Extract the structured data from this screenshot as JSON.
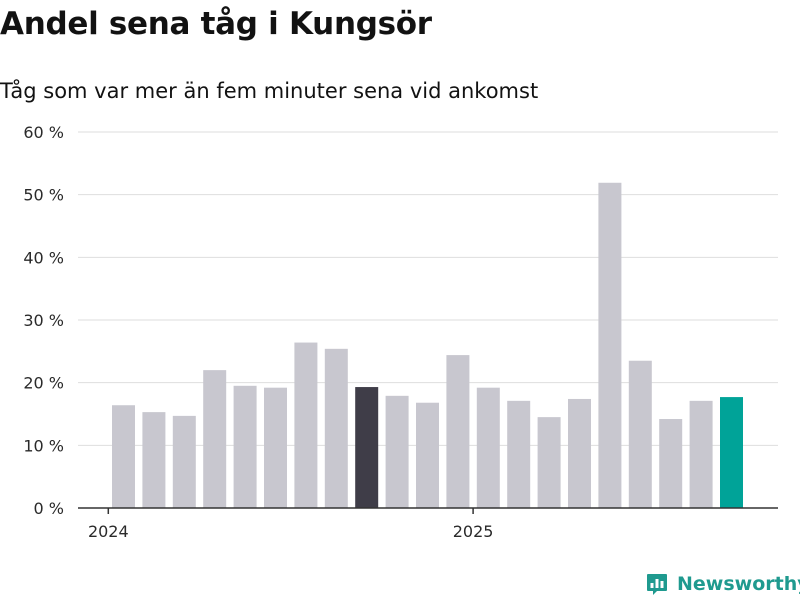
{
  "title": "Andel sena tåg i Kungsör",
  "subtitle": "Tåg som var mer än fem minuter sena vid ankomst",
  "brand": {
    "name": "Newsworthy",
    "icon": "bar-chart-speech-bubble-icon"
  },
  "colors": {
    "bar": "#c8c7cf",
    "highlight_previous_year": "#3f3d48",
    "highlight_latest": "#00a398",
    "gridline": "#dedede",
    "axis": "#333333",
    "brand": "#1f9a8f"
  },
  "chart_data": {
    "type": "bar",
    "title": "Andel sena tåg i Kungsör",
    "subtitle": "Tåg som var mer än fem minuter sena vid ankomst",
    "x_tick_labels": [
      {
        "label": "2024",
        "index": 0
      },
      {
        "label": "2025",
        "index": 12
      }
    ],
    "y_tick_labels": [
      "0 %",
      "10 %",
      "20 %",
      "30 %",
      "40 %",
      "50 %",
      "60 %"
    ],
    "y_ticks": [
      0,
      10,
      20,
      30,
      40,
      50,
      60
    ],
    "ylim": [
      0,
      60
    ],
    "grid": true,
    "unit": "%",
    "values": [
      16.4,
      15.3,
      14.7,
      22.0,
      19.5,
      19.2,
      26.4,
      25.4,
      19.3,
      17.9,
      16.8,
      24.4,
      19.2,
      17.1,
      14.5,
      17.4,
      51.9,
      23.5,
      14.2,
      17.1,
      17.7
    ],
    "highlights": [
      {
        "index": 8,
        "color": "#3f3d48"
      },
      {
        "index": 20,
        "color": "#00a398"
      }
    ]
  }
}
